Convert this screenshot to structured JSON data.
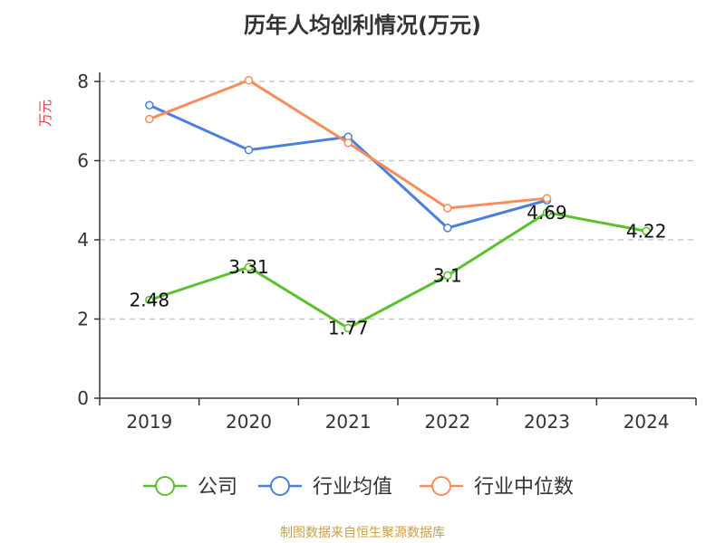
{
  "title": "历年人均创利情况(万元)",
  "source": "制图数据来自恒生聚源数据库",
  "chart_data": {
    "type": "line",
    "categories": [
      "2019",
      "2020",
      "2021",
      "2022",
      "2023",
      "2024"
    ],
    "ylabel": "万元",
    "ylim": [
      0,
      8
    ],
    "yticks": [
      0,
      2,
      4,
      6,
      8
    ],
    "grid": true,
    "legend_position": "bottom",
    "series": [
      {
        "name": "公司",
        "color": "#5ac12e",
        "values": [
          2.48,
          3.31,
          1.77,
          3.1,
          4.69,
          4.22
        ],
        "labels": [
          "2.48",
          "3.31",
          "1.77",
          "3.1",
          "4.69",
          "4.22"
        ]
      },
      {
        "name": "行业均值",
        "color": "#4a7fdc",
        "values": [
          7.4,
          6.27,
          6.6,
          4.3,
          5.0,
          null
        ]
      },
      {
        "name": "行业中位数",
        "color": "#fa8c5a",
        "values": [
          7.05,
          8.03,
          6.45,
          4.8,
          5.05,
          null
        ]
      }
    ]
  }
}
